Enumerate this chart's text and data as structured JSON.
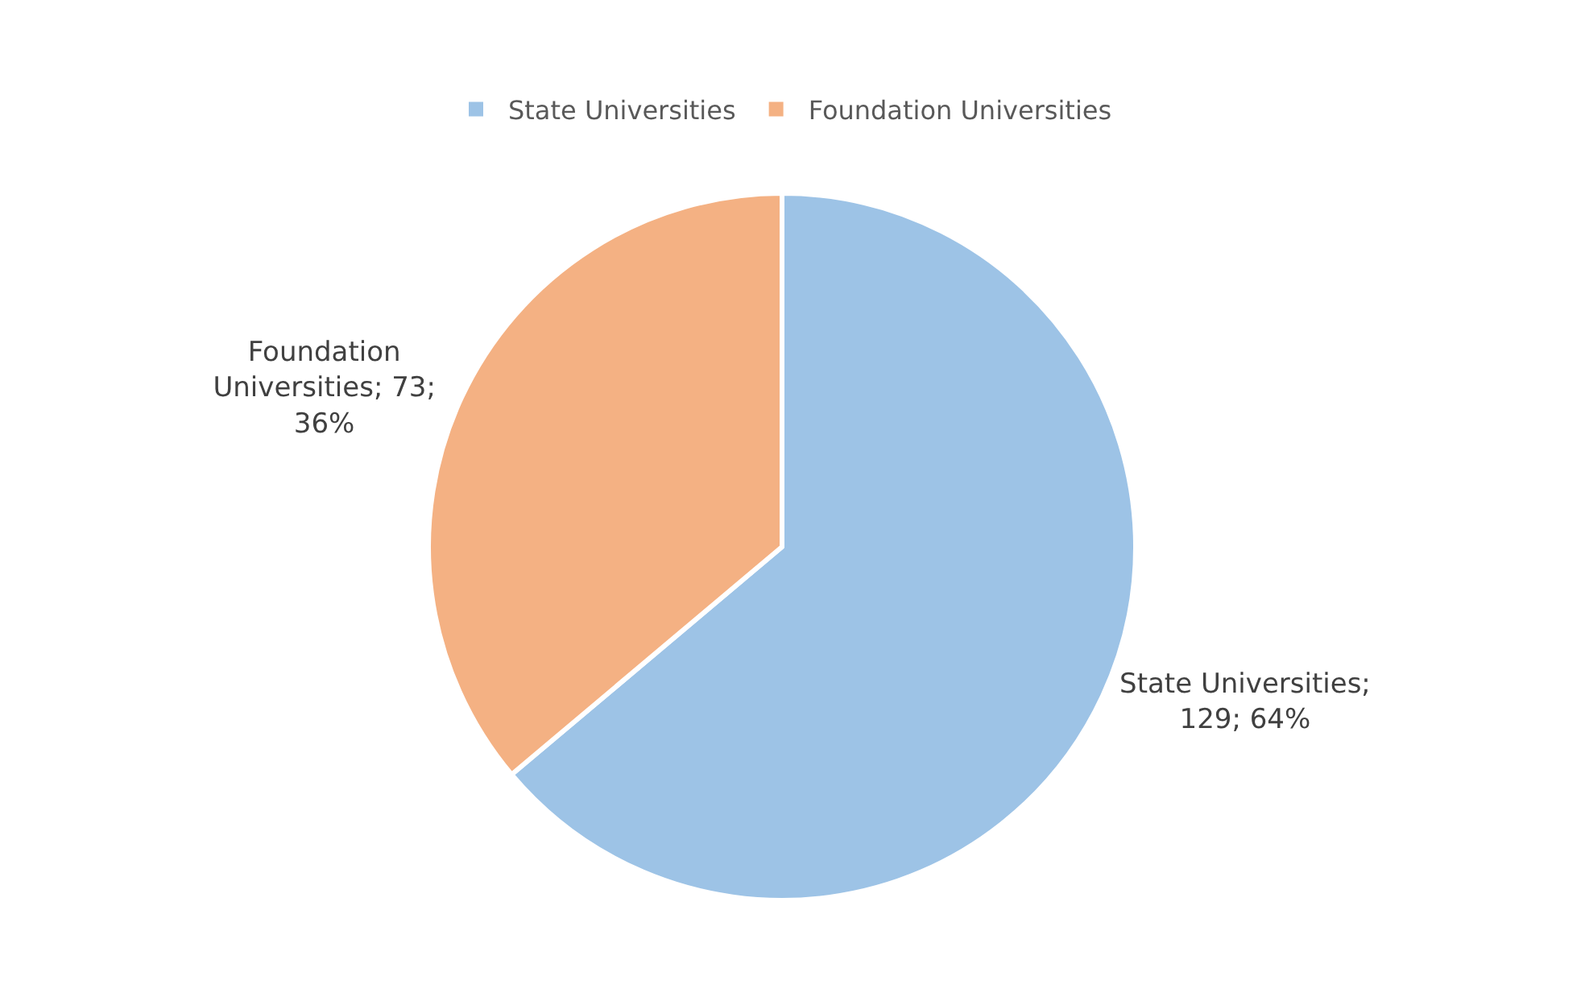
{
  "chart_data": {
    "type": "pie",
    "categories": [
      "State Universities",
      "Foundation Universities"
    ],
    "values": [
      129,
      73
    ],
    "colors": [
      "#9dc3e6",
      "#f4b183"
    ],
    "value_labels": [
      "State Universities; 129; 64%",
      "Foundation Universities; 73; 36%"
    ],
    "legend": "top"
  }
}
